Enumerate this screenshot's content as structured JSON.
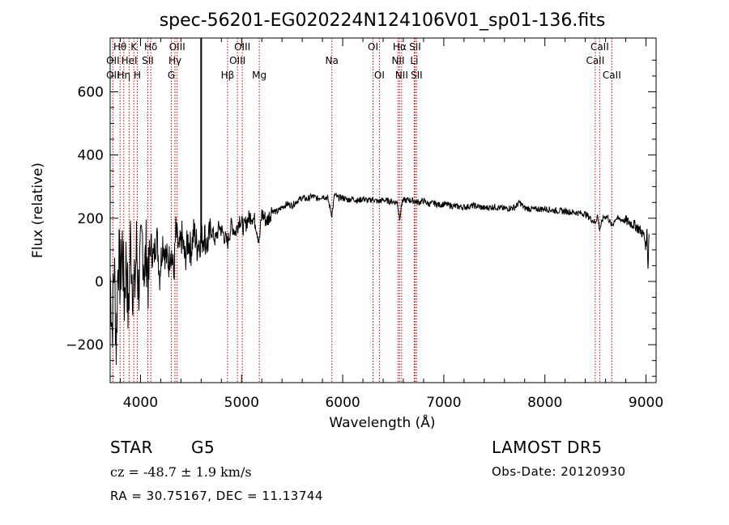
{
  "chart_data": {
    "type": "line",
    "title": "spec-56201-EG020224N124106V01_sp01-136.fits",
    "xlabel": "Wavelength (Å)",
    "ylabel": "Flux (relative)",
    "xlim": [
      3700,
      9100
    ],
    "ylim": [
      -320,
      770
    ],
    "xticks": [
      4000,
      5000,
      6000,
      7000,
      8000,
      9000
    ],
    "yticks": [
      -200,
      0,
      200,
      400,
      600
    ],
    "series": [
      {
        "points": [
          [
            3700,
            20
          ],
          [
            3720,
            -150
          ],
          [
            3740,
            60
          ],
          [
            3760,
            -200
          ],
          [
            3780,
            100
          ],
          [
            3800,
            0
          ],
          [
            3820,
            120
          ],
          [
            3840,
            -60
          ],
          [
            3860,
            90
          ],
          [
            3880,
            -130
          ],
          [
            3900,
            130
          ],
          [
            3920,
            10
          ],
          [
            3940,
            -40
          ],
          [
            3960,
            110
          ],
          [
            3980,
            -20
          ],
          [
            4000,
            60
          ],
          [
            4020,
            140
          ],
          [
            4040,
            30
          ],
          [
            4060,
            100
          ],
          [
            4080,
            -10
          ],
          [
            4100,
            120
          ],
          [
            4130,
            70
          ],
          [
            4160,
            150
          ],
          [
            4190,
            20
          ],
          [
            4220,
            130
          ],
          [
            4250,
            80
          ],
          [
            4280,
            60
          ],
          [
            4300,
            110
          ],
          [
            4330,
            20
          ],
          [
            4350,
            160
          ],
          [
            4380,
            90
          ],
          [
            4410,
            140
          ],
          [
            4440,
            70
          ],
          [
            4470,
            130
          ],
          [
            4500,
            100
          ],
          [
            4530,
            160
          ],
          [
            4560,
            110
          ],
          [
            4580,
            130
          ],
          [
            4600,
            125
          ],
          [
            4630,
            150
          ],
          [
            4660,
            115
          ],
          [
            4700,
            165
          ],
          [
            4740,
            130
          ],
          [
            4780,
            175
          ],
          [
            4820,
            150
          ],
          [
            4860,
            120
          ],
          [
            4900,
            180
          ],
          [
            4940,
            155
          ],
          [
            4980,
            200
          ],
          [
            5020,
            170
          ],
          [
            5060,
            195
          ],
          [
            5100,
            210
          ],
          [
            5140,
            185
          ],
          [
            5175,
            125
          ],
          [
            5200,
            215
          ],
          [
            5250,
            190
          ],
          [
            5300,
            225
          ],
          [
            5350,
            220
          ],
          [
            5400,
            235
          ],
          [
            5450,
            245
          ],
          [
            5500,
            240
          ],
          [
            5550,
            255
          ],
          [
            5600,
            265
          ],
          [
            5650,
            260
          ],
          [
            5700,
            270
          ],
          [
            5750,
            262
          ],
          [
            5800,
            270
          ],
          [
            5850,
            265
          ],
          [
            5893,
            210
          ],
          [
            5920,
            275
          ],
          [
            5950,
            265
          ],
          [
            6000,
            265
          ],
          [
            6050,
            258
          ],
          [
            6100,
            262
          ],
          [
            6150,
            255
          ],
          [
            6200,
            262
          ],
          [
            6250,
            255
          ],
          [
            6300,
            260
          ],
          [
            6350,
            252
          ],
          [
            6400,
            258
          ],
          [
            6450,
            255
          ],
          [
            6500,
            252
          ],
          [
            6540,
            250
          ],
          [
            6563,
            200
          ],
          [
            6590,
            255
          ],
          [
            6650,
            258
          ],
          [
            6700,
            255
          ],
          [
            6750,
            250
          ],
          [
            6800,
            255
          ],
          [
            6850,
            245
          ],
          [
            6900,
            248
          ],
          [
            6950,
            242
          ],
          [
            7000,
            245
          ],
          [
            7100,
            238
          ],
          [
            7200,
            235
          ],
          [
            7300,
            240
          ],
          [
            7400,
            232
          ],
          [
            7500,
            236
          ],
          [
            7600,
            230
          ],
          [
            7700,
            234
          ],
          [
            7750,
            250
          ],
          [
            7800,
            232
          ],
          [
            7900,
            228
          ],
          [
            8000,
            230
          ],
          [
            8100,
            224
          ],
          [
            8200,
            222
          ],
          [
            8300,
            218
          ],
          [
            8400,
            214
          ],
          [
            8498,
            185
          ],
          [
            8520,
            208
          ],
          [
            8542,
            165
          ],
          [
            8580,
            204
          ],
          [
            8620,
            205
          ],
          [
            8662,
            175
          ],
          [
            8700,
            200
          ],
          [
            8800,
            192
          ],
          [
            8850,
            185
          ],
          [
            8900,
            175
          ],
          [
            8950,
            160
          ],
          [
            8980,
            145
          ],
          [
            9000,
            110
          ],
          [
            9010,
            165
          ],
          [
            9020,
            40
          ],
          [
            9030,
            150
          ]
        ]
      }
    ],
    "spike": {
      "x": 4600,
      "y_from": 125,
      "y_to": 770
    },
    "line_labels": [
      {
        "label": "Hθ",
        "x": 3798,
        "row": 1
      },
      {
        "label": "OII",
        "x": 3727,
        "row": 2
      },
      {
        "label": "OII",
        "x": 3727,
        "row": 3
      },
      {
        "label": "HeI",
        "x": 3889,
        "row": 2
      },
      {
        "label": "Hη",
        "x": 3835,
        "row": 3
      },
      {
        "label": "K",
        "x": 3934,
        "row": 1
      },
      {
        "label": "H",
        "x": 3969,
        "row": 3
      },
      {
        "label": "Hδ",
        "x": 4102,
        "row": 1
      },
      {
        "label": "SII",
        "x": 4072,
        "row": 2
      },
      {
        "label": "OIII",
        "x": 4363,
        "row": 1
      },
      {
        "label": "Hγ",
        "x": 4341,
        "row": 2
      },
      {
        "label": "G",
        "x": 4305,
        "row": 3
      },
      {
        "label": "OIII",
        "x": 5007,
        "row": 1
      },
      {
        "label": "OIII",
        "x": 4959,
        "row": 2
      },
      {
        "label": "Hβ",
        "x": 4861,
        "row": 3
      },
      {
        "label": "Mg",
        "x": 5175,
        "row": 3
      },
      {
        "label": "Na",
        "x": 5893,
        "row": 2
      },
      {
        "label": "OI",
        "x": 6300,
        "row": 1
      },
      {
        "label": "OI",
        "x": 6363,
        "row": 3
      },
      {
        "label": "Hα",
        "x": 6563,
        "row": 1
      },
      {
        "label": "NII",
        "x": 6548,
        "row": 2
      },
      {
        "label": "NII",
        "x": 6583,
        "row": 3
      },
      {
        "label": "SII",
        "x": 6716,
        "row": 1
      },
      {
        "label": "Li",
        "x": 6708,
        "row": 2
      },
      {
        "label": "SII",
        "x": 6731,
        "row": 3
      },
      {
        "label": "CaII",
        "x": 8542,
        "row": 1
      },
      {
        "label": "CaII",
        "x": 8498,
        "row": 2
      },
      {
        "label": "CaII",
        "x": 8662,
        "row": 3
      }
    ],
    "line_markers": [
      3727,
      3798,
      3835,
      3889,
      3934,
      3969,
      4072,
      4102,
      4305,
      4341,
      4363,
      4861,
      4959,
      5007,
      5175,
      5893,
      6300,
      6363,
      6548,
      6563,
      6583,
      6708,
      6716,
      6731,
      8498,
      8542,
      8662
    ],
    "marker_color": "#cc0000",
    "line_color": "#000000"
  },
  "info": {
    "object_type": "STAR",
    "subclass": "G5",
    "survey": "LAMOST DR5",
    "redshift_text": "cz = -48.7 ± 1.9 km/s",
    "obs_date": "Obs-Date: 20120930",
    "coords": "RA =  30.75167, DEC =  11.13744"
  }
}
